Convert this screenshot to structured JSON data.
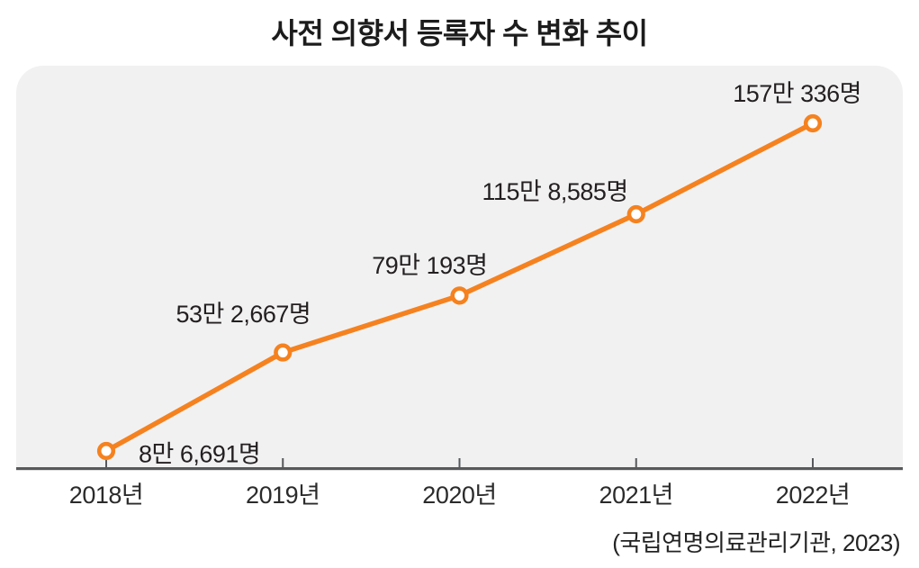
{
  "title": "사전 의향서 등록자 수 변화 추이",
  "source": "(국립연명의료관리기관, 2023)",
  "chart_data": {
    "type": "line",
    "title": "사전 의향서 등록자 수 변화 추이",
    "categories": [
      "2018년",
      "2019년",
      "2020년",
      "2021년",
      "2022년"
    ],
    "values": [
      86691,
      532667,
      790193,
      1158585,
      1570336
    ],
    "point_labels": [
      "8만 6,691명",
      "53만 2,667명",
      "79만 193명",
      "115만 8,585명",
      "157만 336명"
    ],
    "series_name": "사전 의향서 등록자 수",
    "unit": "명",
    "xlabel": "",
    "ylabel": "",
    "legend": "none",
    "grid": false,
    "marker": "open-circle",
    "line_color": "#f5821f",
    "marker_fill": "#ffffff",
    "plot_bg": "#f1f1f2",
    "axis_color": "#58595b",
    "label_color": "#231f20",
    "source_note": "(국립연명의료관리기관, 2023)"
  }
}
